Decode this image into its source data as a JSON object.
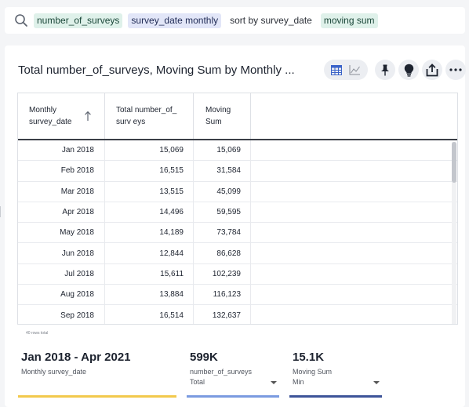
{
  "search": {
    "tokens": [
      {
        "label": "number_of_surveys",
        "style": "green"
      },
      {
        "label": "survey_date monthly",
        "style": "blue"
      },
      {
        "label": "sort by survey_date",
        "style": "plain"
      },
      {
        "label": "moving sum",
        "style": "green"
      }
    ]
  },
  "card": {
    "title": "Total number_of_surveys, Moving Sum by Monthly ..."
  },
  "table": {
    "headers": [
      "Monthly survey_date",
      "Total number_of_surv eys",
      "Moving Sum"
    ],
    "rows": [
      [
        "Jan 2018",
        "15,069",
        "15,069"
      ],
      [
        "Feb 2018",
        "16,515",
        "31,584"
      ],
      [
        "Mar 2018",
        "13,515",
        "45,099"
      ],
      [
        "Apr 2018",
        "14,496",
        "59,595"
      ],
      [
        "May 2018",
        "14,189",
        "73,784"
      ],
      [
        "Jun 2018",
        "12,844",
        "86,628"
      ],
      [
        "Jul 2018",
        "15,611",
        "102,239"
      ],
      [
        "Aug 2018",
        "13,884",
        "116,123"
      ],
      [
        "Sep 2018",
        "16,514",
        "132,637"
      ]
    ],
    "row_count": "40 rows total"
  },
  "kpis": [
    {
      "value": "Jan 2018 - Apr 2021",
      "label": "Monthly survey_date",
      "sub": "",
      "color": "#f2c94c"
    },
    {
      "value": "599K",
      "label": "number_of_surveys",
      "sub": "Total",
      "color": "#7b9be0"
    },
    {
      "value": "15.1K",
      "label": "Moving Sum",
      "sub": "Min",
      "color": "#3d5499"
    }
  ],
  "colors": {
    "token_green": "#dff1ea",
    "token_blue": "#e2e6f8",
    "header_rule": "#3b3f47"
  }
}
